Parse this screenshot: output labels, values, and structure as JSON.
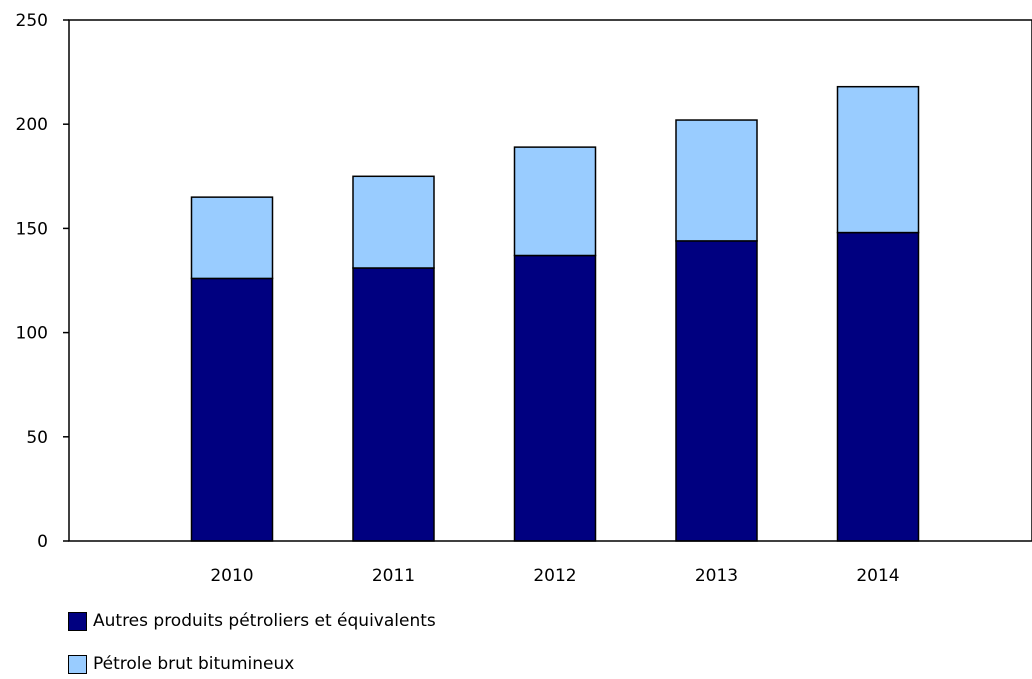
{
  "chart_data": {
    "type": "bar",
    "stacked": true,
    "categories": [
      "2010",
      "2011",
      "2012",
      "2013",
      "2014"
    ],
    "series": [
      {
        "name": "Autres produits pétroliers et équivalents",
        "values": [
          126,
          131,
          137,
          144,
          148
        ],
        "color": "#000080"
      },
      {
        "name": "Pétrole brut bitumineux",
        "values": [
          39,
          44,
          52,
          58,
          70
        ],
        "color": "#99ccff"
      }
    ],
    "ylim": [
      0,
      250
    ],
    "yticks": [
      0,
      50,
      100,
      150,
      200,
      250
    ],
    "grid": false,
    "legend_position": "bottom-left"
  }
}
